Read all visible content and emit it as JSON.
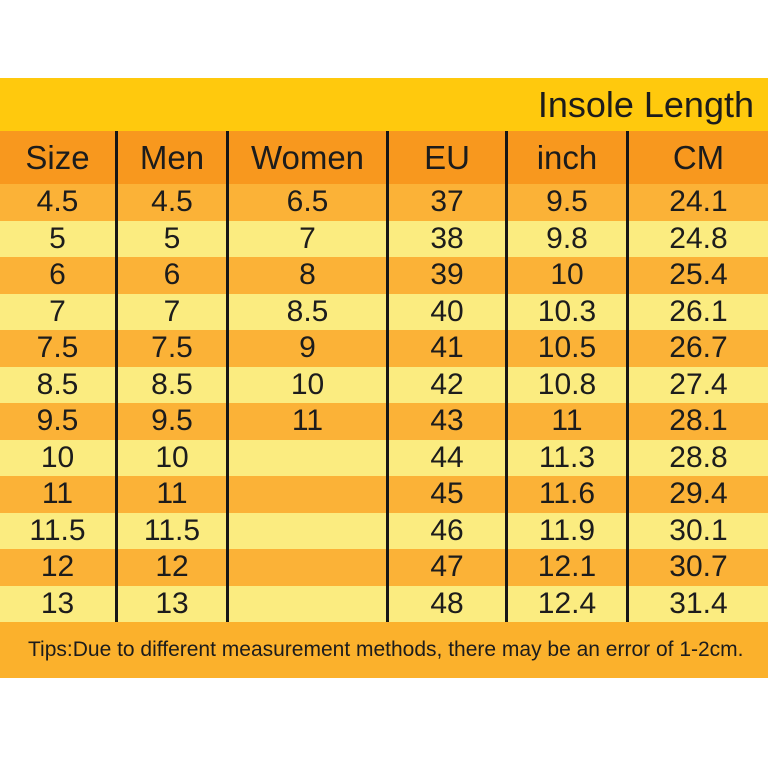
{
  "chart_data": {
    "type": "table",
    "title": "Insole Length",
    "columns": [
      "Size",
      "Men",
      "Women",
      "EU",
      "inch",
      "CM"
    ],
    "rows": [
      [
        "4.5",
        "4.5",
        "6.5",
        "37",
        "9.5",
        "24.1"
      ],
      [
        "5",
        "5",
        "7",
        "38",
        "9.8",
        "24.8"
      ],
      [
        "6",
        "6",
        "8",
        "39",
        "10",
        "25.4"
      ],
      [
        "7",
        "7",
        "8.5",
        "40",
        "10.3",
        "26.1"
      ],
      [
        "7.5",
        "7.5",
        "9",
        "41",
        "10.5",
        "26.7"
      ],
      [
        "8.5",
        "8.5",
        "10",
        "42",
        "10.8",
        "27.4"
      ],
      [
        "9.5",
        "9.5",
        "11",
        "43",
        "11",
        "28.1"
      ],
      [
        "10",
        "10",
        "",
        "44",
        "11.3",
        "28.8"
      ],
      [
        "11",
        "11",
        "",
        "45",
        "11.6",
        "29.4"
      ],
      [
        "11.5",
        "11.5",
        "",
        "46",
        "11.9",
        "30.1"
      ],
      [
        "12",
        "12",
        "",
        "47",
        "12.1",
        "30.7"
      ],
      [
        "13",
        "13",
        "",
        "48",
        "12.4",
        "31.4"
      ]
    ],
    "note": "Tips:Due to different measurement methods, there may be an error of 1-2cm."
  },
  "colors": {
    "band_gold": "#FFC90D",
    "header_orange": "#F8981E",
    "row_amber": "#FBB237",
    "row_pale": "#FBEC80",
    "tips_amber": "#FBB12C",
    "line_black": "#161616",
    "text": "#1C1C1C"
  }
}
